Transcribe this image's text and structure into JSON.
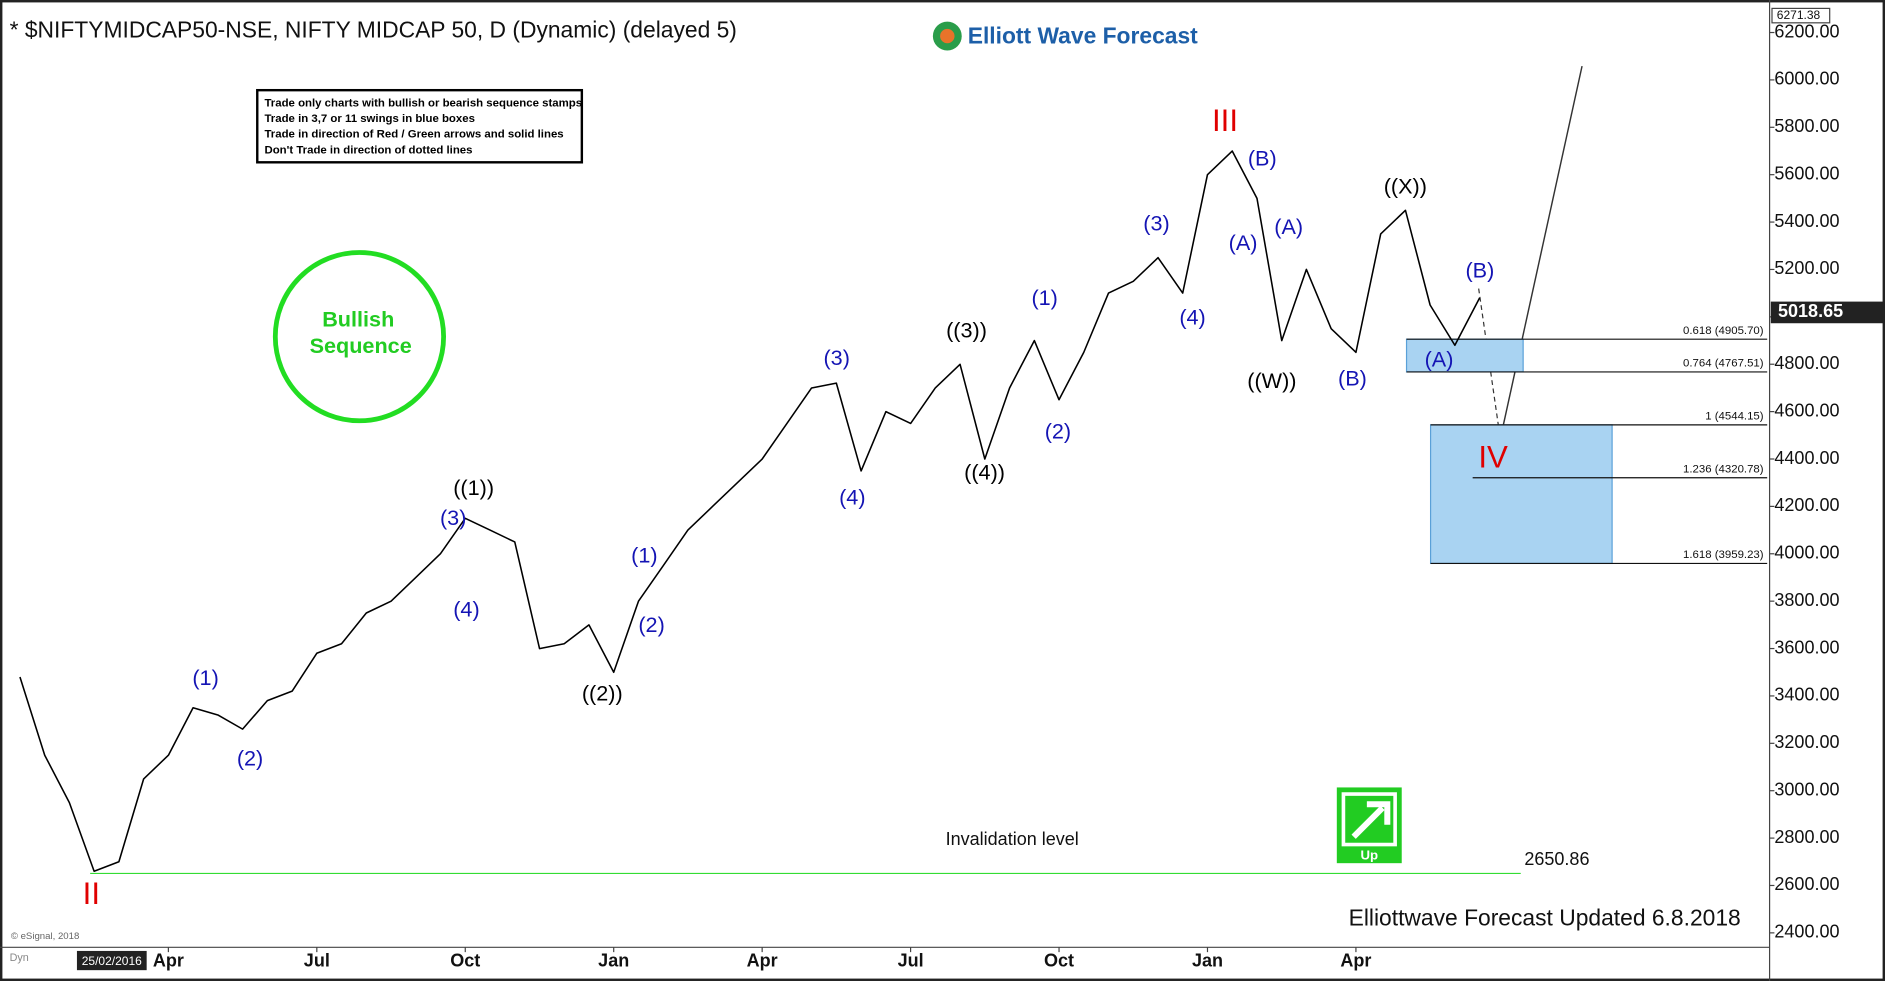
{
  "chart_data": {
    "type": "line",
    "title": "* $NIFTYMIDCAP50-NSE, NIFTY MIDCAP 50, D (Dynamic) (delayed 5)",
    "logo": "Elliott Wave Forecast",
    "footer": "Elliottwave Forecast Updated 6.8.2018",
    "copyright": "© eSignal, 2018",
    "mode": "Dyn",
    "cursor_date": "25/02/2016",
    "notes": [
      "Trade only charts with bullish or bearish sequence stamps",
      "Trade in 3,7 or 11 swings in blue boxes",
      "Trade in direction of Red / Green arrows and solid lines",
      "Don't Trade in direction of dotted lines"
    ],
    "stamp": [
      "Bullish",
      "Sequence"
    ],
    "arrow_label": "Up",
    "color": "#000000",
    "categories": [
      null,
      null,
      null,
      null,
      null,
      null,
      null,
      "Apr",
      null,
      null,
      null,
      null,
      null,
      "Jul",
      null,
      null,
      null,
      null,
      null,
      "Oct",
      null,
      null,
      null,
      null,
      null,
      "Jan",
      null,
      null,
      null,
      null,
      null,
      "Apr",
      null,
      null,
      null,
      null,
      null,
      "Jul",
      null,
      null,
      null,
      null,
      null,
      "Oct",
      null,
      null,
      null,
      null,
      null,
      "Jan",
      null,
      null,
      null,
      null,
      null,
      "Apr",
      null,
      null,
      null,
      null,
      null,
      null,
      null,
      null,
      null,
      null,
      null,
      null,
      null,
      null,
      null,
      null
    ],
    "values": [
      null,
      3480,
      3150,
      2950,
      2660,
      2700,
      3050,
      3150,
      3350,
      3320,
      3260,
      3380,
      3420,
      3580,
      3620,
      3750,
      3800,
      3900,
      4000,
      4150,
      4100,
      4050,
      3600,
      3620,
      3700,
      3500,
      3800,
      3950,
      4100,
      4200,
      4300,
      4400,
      4550,
      4700,
      4720,
      4350,
      4600,
      4550,
      4700,
      4800,
      4400,
      4700,
      4900,
      4650,
      4850,
      5100,
      5150,
      5250,
      5100,
      5600,
      5700,
      5500,
      4900,
      5200,
      4950,
      4850,
      5350,
      5450,
      5050,
      4880,
      5080,
      null,
      null,
      null,
      null,
      null,
      null,
      null,
      null,
      null,
      null,
      null
    ],
    "ylim": [
      2340,
      6290
    ],
    "yticks": [
      {
        "value": 2400,
        "label": "2400.00"
      },
      {
        "value": 2600,
        "label": "2600.00"
      },
      {
        "value": 2800,
        "label": "2800.00"
      },
      {
        "value": 3000,
        "label": "3000.00"
      },
      {
        "value": 3200,
        "label": "3200.00"
      },
      {
        "value": 3400,
        "label": "3400.00"
      },
      {
        "value": 3600,
        "label": "3600.00"
      },
      {
        "value": 3800,
        "label": "3800.00"
      },
      {
        "value": 4000,
        "label": "4000.00"
      },
      {
        "value": 4200,
        "label": "4200.00"
      },
      {
        "value": 4400,
        "label": "4400.00"
      },
      {
        "value": 4600,
        "label": "4600.00"
      },
      {
        "value": 4800,
        "label": "4800.00"
      },
      {
        "value": 5000,
        "label": "5000.00"
      },
      {
        "value": 5200,
        "label": "5200.00"
      },
      {
        "value": 5400,
        "label": "5400.00"
      },
      {
        "value": 5600,
        "label": "5600.00"
      },
      {
        "value": 5800,
        "label": "5800.00"
      },
      {
        "value": 6000,
        "label": "6000.00"
      },
      {
        "value": 6200,
        "label": "6200.00"
      }
    ],
    "last_price": 5018.65,
    "high_marker": 6271.38,
    "fib_levels": [
      {
        "value": 4905.7,
        "label": "0.618 (4905.70)"
      },
      {
        "value": 4767.51,
        "label": "0.764 (4767.51)"
      },
      {
        "value": 4544.15,
        "label": "1 (4544.15)"
      },
      {
        "value": 4320.78,
        "label": "1.236 (4320.78)"
      },
      {
        "value": 3959.23,
        "label": "1.618 (3959.23)"
      }
    ],
    "invalidation": {
      "label": "Invalidation level",
      "value": 2650.86
    },
    "annotations": [
      {
        "text": "II",
        "color": "#e00000"
      },
      {
        "text": "(1)",
        "color": "#1414b4"
      },
      {
        "text": "(2)",
        "color": "#1414b4"
      },
      {
        "text": "((1))",
        "color": "#000000"
      },
      {
        "text": "(3)",
        "color": "#1414b4"
      },
      {
        "text": "(4)",
        "color": "#1414b4"
      },
      {
        "text": "((2))",
        "color": "#000000"
      },
      {
        "text": "(1)",
        "color": "#1414b4"
      },
      {
        "text": "(2)",
        "color": "#1414b4"
      },
      {
        "text": "(3)",
        "color": "#1414b4"
      },
      {
        "text": "(4)",
        "color": "#1414b4"
      },
      {
        "text": "((3))",
        "color": "#000000"
      },
      {
        "text": "((4))",
        "color": "#000000"
      },
      {
        "text": "(1)",
        "color": "#1414b4"
      },
      {
        "text": "(2)",
        "color": "#1414b4"
      },
      {
        "text": "(3)",
        "color": "#1414b4"
      },
      {
        "text": "(4)",
        "color": "#1414b4"
      },
      {
        "text": "III",
        "color": "#e00000"
      },
      {
        "text": "(B)",
        "color": "#1414b4"
      },
      {
        "text": "(A)",
        "color": "#1414b4"
      },
      {
        "text": "(A)",
        "color": "#1414b4"
      },
      {
        "text": "((W))",
        "color": "#000000"
      },
      {
        "text": "(B)",
        "color": "#1414b4"
      },
      {
        "text": "((X))",
        "color": "#000000"
      },
      {
        "text": "(B)",
        "color": "#1414b4"
      },
      {
        "text": "(A)",
        "color": "#1414b4"
      },
      {
        "text": "IV",
        "color": "#e00000"
      }
    ]
  }
}
